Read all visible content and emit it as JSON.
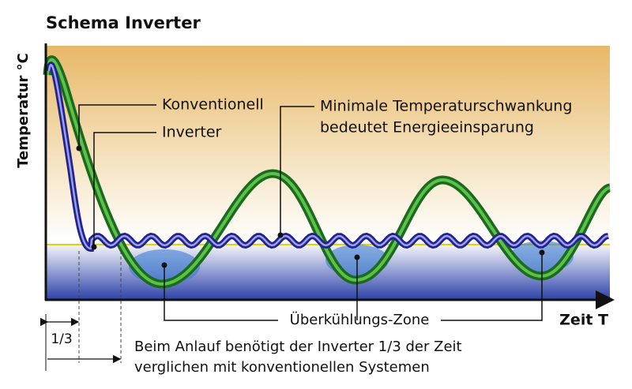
{
  "title": "Schema Inverter",
  "y_axis_label": "Temperatur °C",
  "x_axis_label": "Zeit T",
  "labels": {
    "conventional": "Konventionell",
    "inverter": "Inverter",
    "fluctuation_line1": "Minimale Temperaturschwankung",
    "fluctuation_line2": "bedeutet Energieeinsparung",
    "overcooling": "Überkühlungs-Zone",
    "third": "1/3",
    "note_line1": "Beim Anlauf benötigt der Inverter 1/3 der Zeit",
    "note_line2": "verglichen mit konventionellen Systemen"
  }
}
